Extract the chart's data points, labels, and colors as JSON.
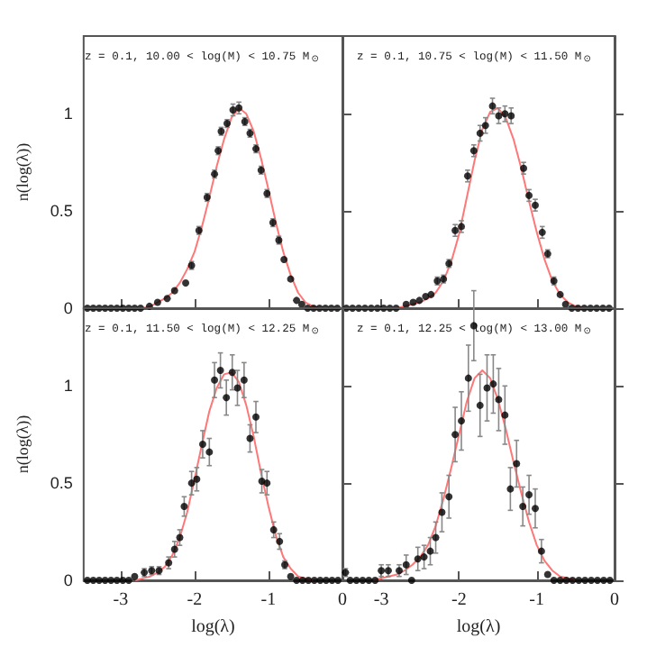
{
  "chart_data": [
    {
      "type": "scatter",
      "title": "z = 0.1, 10.00 < log(M) < 10.75 M$_{⊙}$",
      "ylabel": "n(log(λ))",
      "xlim": [
        -3.5,
        0
      ],
      "ylim": [
        0,
        1.4
      ],
      "xticks": [
        -3,
        -2,
        -1,
        0
      ],
      "yticks": [
        0,
        0.5,
        1
      ],
      "tick_labels": "y",
      "series": [
        {
          "type": "scatter",
          "color": "#000000",
          "marker": "circle",
          "x": [
            -3.45,
            -3.37,
            -3.29,
            -3.21,
            -3.13,
            -3.05,
            -2.97,
            -2.89,
            -2.81,
            -2.73,
            -2.61,
            -2.5,
            -2.37,
            -2.27,
            -2.12,
            -2.04,
            -1.94,
            -1.83,
            -1.73,
            -1.68,
            -1.64,
            -1.56,
            -1.48,
            -1.4,
            -1.32,
            -1.25,
            -1.17,
            -1.1,
            -1.02,
            -0.94,
            -0.86,
            -0.79,
            -0.7,
            -0.62,
            -0.55,
            -0.47,
            -0.39,
            -0.31,
            -0.23,
            -0.15,
            -0.07
          ],
          "values": [
            0,
            0,
            0,
            0,
            0,
            0,
            0,
            0,
            0,
            0,
            0.01,
            0.03,
            0.05,
            0.09,
            0.13,
            0.22,
            0.4,
            0.57,
            0.69,
            0.81,
            0.91,
            0.95,
            1.02,
            1.03,
            0.96,
            0.9,
            0.82,
            0.71,
            0.59,
            0.44,
            0.35,
            0.25,
            0.15,
            0.04,
            0.02,
            0,
            0,
            0,
            0,
            0,
            0
          ],
          "errors": [
            null,
            null,
            null,
            null,
            null,
            null,
            null,
            null,
            null,
            null,
            null,
            null,
            null,
            null,
            null,
            0.02,
            0.02,
            0.02,
            0.02,
            0.02,
            0.02,
            0.02,
            0.03,
            0.03,
            0.02,
            0.02,
            0.02,
            0.02,
            0.02,
            0.02,
            0.02,
            null,
            null,
            null,
            null,
            null,
            null,
            null,
            null,
            null,
            null
          ]
        },
        {
          "type": "line",
          "color": "#ff7777",
          "marker": "none",
          "x": [
            -2.8,
            -2.7,
            -2.6,
            -2.5,
            -2.4,
            -2.3,
            -2.2,
            -2.1,
            -2.0,
            -1.9,
            -1.8,
            -1.7,
            -1.6,
            -1.5,
            -1.4,
            -1.3,
            -1.2,
            -1.1,
            -1.0,
            -0.9,
            -0.8,
            -0.7,
            -0.6,
            -0.5,
            -0.4,
            -0.3
          ],
          "values": [
            0,
            0,
            0.01,
            0.03,
            0.05,
            0.08,
            0.13,
            0.2,
            0.29,
            0.42,
            0.57,
            0.73,
            0.87,
            0.98,
            1.03,
            1.0,
            0.91,
            0.77,
            0.61,
            0.44,
            0.29,
            0.17,
            0.08,
            0.03,
            0.01,
            0
          ]
        }
      ]
    },
    {
      "type": "scatter",
      "title": "z = 0.1, 10.75 < log(M) < 11.50 M$_{⊙}$",
      "xlim": [
        -3.5,
        0
      ],
      "ylim": [
        0,
        1.4
      ],
      "xticks": [
        -3,
        -2,
        -1,
        0
      ],
      "yticks": [
        0,
        0.5,
        1
      ],
      "tick_labels": false,
      "series": [
        {
          "type": "scatter",
          "color": "#000000",
          "marker": "circle",
          "x": [
            -3.45,
            -3.37,
            -3.29,
            -3.21,
            -3.13,
            -3.05,
            -2.97,
            -2.89,
            -2.81,
            -2.68,
            -2.59,
            -2.51,
            -2.43,
            -2.36,
            -2.28,
            -2.2,
            -2.13,
            -2.05,
            -1.97,
            -1.89,
            -1.81,
            -1.73,
            -1.66,
            -1.57,
            -1.49,
            -1.41,
            -1.33,
            -1.17,
            -1.1,
            -1.02,
            -0.93,
            -0.86,
            -0.78,
            -0.7,
            -0.63,
            -0.55,
            -0.47,
            -0.39,
            -0.31,
            -0.23,
            -0.15,
            -0.07
          ],
          "values": [
            0,
            0,
            0,
            0,
            0,
            0,
            0,
            0,
            0,
            0.02,
            0.03,
            0.04,
            0.06,
            0.07,
            0.14,
            0.15,
            0.23,
            0.4,
            0.42,
            0.68,
            0.81,
            0.9,
            0.94,
            1.04,
            0.99,
            1.0,
            0.99,
            0.72,
            0.58,
            0.53,
            0.39,
            0.28,
            0.14,
            0.07,
            0.02,
            0,
            0,
            0,
            0,
            0,
            0,
            0
          ],
          "errors": [
            null,
            null,
            null,
            null,
            null,
            null,
            null,
            null,
            null,
            null,
            null,
            null,
            null,
            null,
            0.02,
            0.02,
            0.02,
            0.03,
            0.03,
            0.03,
            0.03,
            0.04,
            0.04,
            0.04,
            0.04,
            0.04,
            0.04,
            0.03,
            0.03,
            0.03,
            0.03,
            0.02,
            0.02,
            null,
            null,
            null,
            null,
            null,
            null,
            null,
            null,
            null
          ]
        },
        {
          "type": "line",
          "color": "#ff7777",
          "marker": "none",
          "x": [
            -2.8,
            -2.7,
            -2.6,
            -2.5,
            -2.4,
            -2.3,
            -2.2,
            -2.1,
            -2.0,
            -1.9,
            -1.8,
            -1.7,
            -1.6,
            -1.5,
            -1.4,
            -1.3,
            -1.2,
            -1.1,
            -1.0,
            -0.9,
            -0.8,
            -0.7,
            -0.6,
            -0.5,
            -0.4
          ],
          "values": [
            0,
            0.01,
            0.02,
            0.03,
            0.05,
            0.08,
            0.14,
            0.24,
            0.38,
            0.57,
            0.76,
            0.92,
            1.01,
            1.03,
            0.98,
            0.87,
            0.72,
            0.55,
            0.39,
            0.25,
            0.14,
            0.07,
            0.03,
            0.01,
            0
          ]
        }
      ]
    },
    {
      "type": "scatter",
      "title": "z = 0.1, 11.50 < log(M) < 12.25 M$_{⊙}$",
      "xlabel": "log(λ)",
      "ylabel": "n(log(λ))",
      "xlim": [
        -3.5,
        0
      ],
      "ylim": [
        0,
        1.4
      ],
      "xticks": [
        -3,
        -2,
        -1,
        0
      ],
      "yticks": [
        0,
        0.5,
        1
      ],
      "series": [
        {
          "type": "scatter",
          "color": "#000000",
          "marker": "circle",
          "x": [
            -3.45,
            -3.37,
            -3.29,
            -3.21,
            -3.13,
            -3.05,
            -2.97,
            -2.89,
            -2.81,
            -2.68,
            -2.58,
            -2.48,
            -2.35,
            -2.27,
            -2.2,
            -2.14,
            -2.04,
            -1.97,
            -1.89,
            -1.8,
            -1.73,
            -1.65,
            -1.57,
            -1.49,
            -1.42,
            -1.33,
            -1.25,
            -1.17,
            -1.09,
            -1.02,
            -0.93,
            -0.85,
            -0.78,
            -0.7,
            -0.62,
            -0.54,
            -0.46,
            -0.38,
            -0.3,
            -0.22,
            -0.14,
            -0.06
          ],
          "values": [
            0,
            0,
            0,
            0,
            0,
            0,
            0,
            0,
            0.02,
            0.04,
            0.05,
            0.05,
            0.09,
            0.16,
            0.22,
            0.38,
            0.5,
            0.52,
            0.7,
            0.66,
            1.03,
            1.08,
            0.94,
            1.07,
            0.99,
            1.03,
            0.73,
            0.84,
            0.51,
            0.5,
            0.26,
            0.2,
            0.08,
            0.02,
            0,
            0,
            0,
            0,
            0,
            0,
            0,
            0
          ],
          "errors": [
            null,
            null,
            null,
            null,
            null,
            null,
            null,
            null,
            null,
            0.02,
            0.02,
            0.02,
            0.03,
            0.04,
            0.04,
            0.05,
            0.06,
            0.06,
            0.07,
            0.07,
            0.09,
            0.09,
            0.09,
            0.09,
            0.09,
            0.09,
            0.07,
            0.08,
            0.06,
            0.06,
            0.04,
            0.04,
            0.02,
            null,
            null,
            null,
            null,
            null,
            null,
            null,
            null,
            null
          ]
        },
        {
          "type": "line",
          "color": "#ff7777",
          "marker": "none",
          "x": [
            -2.8,
            -2.7,
            -2.6,
            -2.5,
            -2.4,
            -2.3,
            -2.2,
            -2.1,
            -2.0,
            -1.9,
            -1.8,
            -1.7,
            -1.6,
            -1.5,
            -1.4,
            -1.3,
            -1.2,
            -1.1,
            -1.0,
            -0.9,
            -0.8,
            -0.7,
            -0.6,
            -0.5,
            -0.4
          ],
          "values": [
            0,
            0.01,
            0.02,
            0.04,
            0.07,
            0.13,
            0.22,
            0.35,
            0.52,
            0.7,
            0.87,
            0.99,
            1.06,
            1.07,
            1.02,
            0.9,
            0.74,
            0.55,
            0.38,
            0.23,
            0.12,
            0.06,
            0.02,
            0.01,
            0
          ]
        }
      ]
    },
    {
      "type": "scatter",
      "title": "z = 0.1, 12.25 < log(M) < 13.00 M$_{⊙}$",
      "xlabel": "log(λ)",
      "xlim": [
        -3.5,
        0
      ],
      "ylim": [
        0,
        1.4
      ],
      "xticks": [
        -3,
        -2,
        -1,
        0
      ],
      "yticks": [
        0,
        0.5,
        1
      ],
      "tick_labels": "x",
      "series": [
        {
          "type": "scatter",
          "color": "#000000",
          "marker": "circle",
          "x": [
            -3.46,
            -3.4,
            -3.32,
            -3.24,
            -3.16,
            -3.08,
            -3.0,
            -2.91,
            -2.77,
            -2.68,
            -2.61,
            -2.53,
            -2.45,
            -2.37,
            -2.3,
            -2.22,
            -2.13,
            -2.05,
            -1.97,
            -1.88,
            -1.81,
            -1.73,
            -1.64,
            -1.56,
            -1.49,
            -1.41,
            -1.34,
            -1.26,
            -1.18,
            -1.1,
            -1.02,
            -0.94,
            -0.86,
            -0.78,
            -0.7,
            -0.62,
            -0.54,
            -0.46,
            -0.38,
            -0.3,
            -0.22,
            -0.14,
            -0.06
          ],
          "values": [
            0.04,
            0,
            0,
            0,
            0,
            0,
            0.05,
            0.05,
            0.05,
            0.08,
            0,
            0.11,
            0.12,
            0.15,
            0.22,
            0.35,
            0.43,
            0.75,
            0.82,
            1.04,
            1.31,
            0.9,
            0.99,
            1.01,
            0.93,
            0.85,
            0.47,
            0.6,
            0.38,
            0.44,
            0.37,
            0.15,
            0.03,
            0,
            0,
            0,
            0,
            0,
            0,
            0,
            0,
            0,
            0
          ],
          "errors": [
            0.02,
            null,
            null,
            null,
            null,
            null,
            0.03,
            0.03,
            0.03,
            0.05,
            null,
            0.06,
            0.06,
            0.07,
            0.08,
            0.1,
            0.11,
            0.14,
            0.15,
            0.17,
            0.18,
            0.16,
            0.17,
            0.15,
            0.16,
            0.15,
            0.11,
            0.12,
            0.1,
            0.1,
            0.1,
            0.06,
            null,
            null,
            null,
            null,
            null,
            null,
            null,
            null,
            null,
            null,
            null
          ]
        },
        {
          "type": "line",
          "color": "#ff7777",
          "marker": "none",
          "x": [
            -3.1,
            -3.0,
            -2.9,
            -2.8,
            -2.7,
            -2.6,
            -2.5,
            -2.4,
            -2.3,
            -2.2,
            -2.1,
            -2.0,
            -1.9,
            -1.8,
            -1.7,
            -1.6,
            -1.5,
            -1.4,
            -1.3,
            -1.2,
            -1.1,
            -1.0,
            -0.9,
            -0.8,
            -0.7,
            -0.6,
            -0.5
          ],
          "values": [
            0,
            0.01,
            0.02,
            0.03,
            0.05,
            0.08,
            0.12,
            0.18,
            0.28,
            0.42,
            0.58,
            0.75,
            0.92,
            1.04,
            1.08,
            1.04,
            0.93,
            0.78,
            0.61,
            0.45,
            0.3,
            0.18,
            0.1,
            0.05,
            0.02,
            0.01,
            0
          ]
        }
      ]
    }
  ]
}
